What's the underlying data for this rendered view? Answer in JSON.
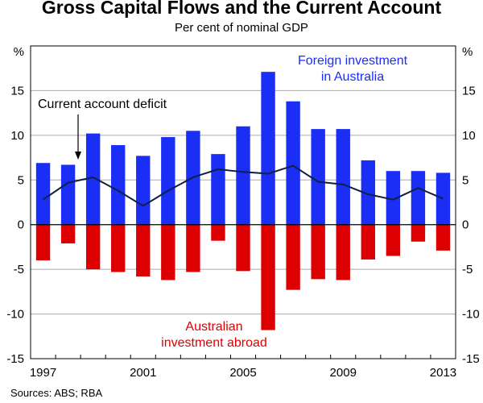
{
  "title": "Gross Capital Flows and the Current Account",
  "subtitle": "Per cent of nominal GDP",
  "source": "Sources: ABS; RBA",
  "colors": {
    "foreign": "#1a2ef5",
    "abroad": "#dd0000",
    "line": "#0f1f45",
    "grid": "#aaaaaa"
  },
  "chart_data": {
    "type": "bar",
    "x": [
      1997,
      1998,
      1999,
      2000,
      2001,
      2002,
      2003,
      2004,
      2005,
      2006,
      2007,
      2008,
      2009,
      2010,
      2011,
      2012,
      2013
    ],
    "series": [
      {
        "name": "Foreign investment in Australia",
        "kind": "bar",
        "values": [
          6.9,
          6.7,
          10.2,
          8.9,
          7.7,
          9.8,
          10.5,
          7.9,
          11.0,
          17.1,
          13.8,
          10.7,
          10.7,
          7.2,
          6.0,
          6.0,
          5.8
        ]
      },
      {
        "name": "Australian investment abroad",
        "kind": "bar",
        "values": [
          -4.0,
          -2.1,
          -5.0,
          -5.3,
          -5.8,
          -6.2,
          -5.3,
          -1.8,
          -5.2,
          -11.8,
          -7.3,
          -6.1,
          -6.2,
          -3.9,
          -3.5,
          -1.9,
          -2.9
        ]
      },
      {
        "name": "Current account deficit",
        "kind": "line",
        "values": [
          2.8,
          4.7,
          5.3,
          3.8,
          2.1,
          3.8,
          5.3,
          6.2,
          5.9,
          5.7,
          6.6,
          4.8,
          4.5,
          3.4,
          2.8,
          4.1,
          2.9
        ]
      }
    ],
    "labels": {
      "foreign_1": "Foreign investment",
      "foreign_2": "in Australia",
      "abroad_1": "Australian",
      "abroad_2": "investment abroad",
      "cad": "Current account deficit"
    },
    "y_unit": "%",
    "ylim": [
      -15,
      20
    ],
    "y_ticks": [
      -15,
      -10,
      -5,
      0,
      5,
      10,
      15
    ],
    "x_tick_labels": [
      "1997",
      "2001",
      "2005",
      "2009",
      "2013"
    ],
    "grid": true
  }
}
